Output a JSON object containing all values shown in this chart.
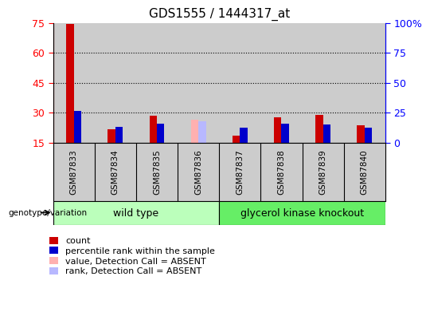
{
  "title": "GDS1555 / 1444317_at",
  "samples": [
    "GSM87833",
    "GSM87834",
    "GSM87835",
    "GSM87836",
    "GSM87837",
    "GSM87838",
    "GSM87839",
    "GSM87840"
  ],
  "count_values": [
    74.5,
    21.5,
    28.5,
    15.0,
    18.5,
    27.5,
    29.0,
    23.5
  ],
  "rank_values": [
    31.0,
    23.0,
    24.5,
    0.0,
    22.5,
    24.5,
    24.0,
    22.5
  ],
  "absent_value_vals": [
    0.0,
    0.0,
    0.0,
    26.5,
    0.0,
    0.0,
    0.0,
    0.0
  ],
  "absent_rank_vals": [
    0.0,
    0.0,
    0.0,
    25.5,
    0.0,
    0.0,
    0.0,
    0.0
  ],
  "ylim_left": [
    15,
    75
  ],
  "ylim_right": [
    0,
    100
  ],
  "yticks_left": [
    15,
    30,
    45,
    60,
    75
  ],
  "yticks_right": [
    0,
    25,
    50,
    75,
    100
  ],
  "ytick_labels_right": [
    "0",
    "25",
    "50",
    "75",
    "100%"
  ],
  "color_count": "#cc0000",
  "color_rank": "#0000cc",
  "color_absent_value": "#ffb0b0",
  "color_absent_rank": "#b8b8ff",
  "color_wt_bg": "#bbffbb",
  "color_ko_bg": "#66ee66",
  "color_sample_bg": "#cccccc",
  "group_label": "genotype/variation",
  "wild_type_label": "wild type",
  "ko_label": "glycerol kinase knockout",
  "legend_items": [
    "count",
    "percentile rank within the sample",
    "value, Detection Call = ABSENT",
    "rank, Detection Call = ABSENT"
  ],
  "bar_width": 0.18,
  "wt_count": 4,
  "ko_count": 4
}
